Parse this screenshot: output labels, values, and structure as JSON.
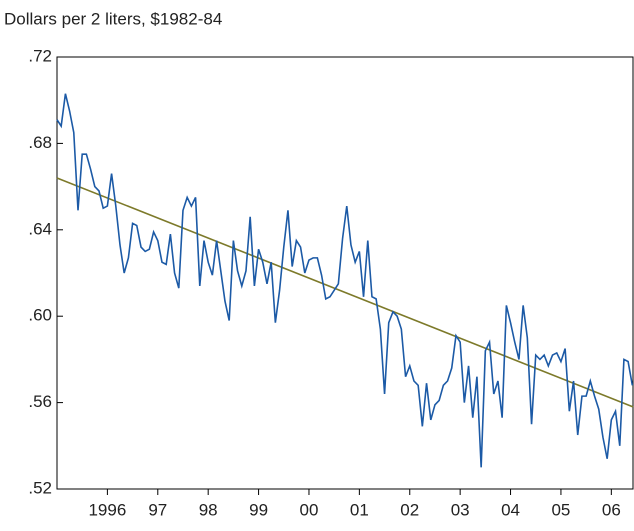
{
  "chart_data": {
    "type": "line",
    "title": "Dollars per 2 liters, $1982-84",
    "x": [
      1995.5,
      1995.583,
      1995.667,
      1995.75,
      1995.833,
      1995.917,
      1996,
      1996.083,
      1996.167,
      1996.25,
      1996.333,
      1996.417,
      1996.5,
      1996.583,
      1996.667,
      1996.75,
      1996.833,
      1996.917,
      1997,
      1997.083,
      1997.167,
      1997.25,
      1997.333,
      1997.417,
      1997.5,
      1997.583,
      1997.667,
      1997.75,
      1997.833,
      1997.917,
      1998,
      1998.083,
      1998.167,
      1998.25,
      1998.333,
      1998.417,
      1998.5,
      1998.583,
      1998.667,
      1998.75,
      1998.833,
      1998.917,
      1999,
      1999.083,
      1999.167,
      1999.25,
      1999.333,
      1999.417,
      1999.5,
      1999.583,
      1999.667,
      1999.75,
      1999.833,
      1999.917,
      2000,
      2000.083,
      2000.167,
      2000.25,
      2000.333,
      2000.417,
      2000.5,
      2000.583,
      2000.667,
      2000.75,
      2000.833,
      2000.917,
      2001,
      2001.083,
      2001.167,
      2001.25,
      2001.333,
      2001.417,
      2001.5,
      2001.583,
      2001.667,
      2001.75,
      2001.833,
      2001.917,
      2002,
      2002.083,
      2002.167,
      2002.25,
      2002.333,
      2002.417,
      2002.5,
      2002.583,
      2002.667,
      2002.75,
      2002.833,
      2002.917,
      2003,
      2003.083,
      2003.167,
      2003.25,
      2003.333,
      2003.417,
      2003.5,
      2003.583,
      2003.667,
      2003.75,
      2003.833,
      2003.917,
      2004,
      2004.083,
      2004.167,
      2004.25,
      2004.333,
      2004.417,
      2004.5,
      2004.583,
      2004.667,
      2004.75,
      2004.833,
      2004.917,
      2005,
      2005.083,
      2005.167,
      2005.25,
      2005.333,
      2005.417,
      2005.5,
      2005.583,
      2005.667,
      2005.75,
      2005.833,
      2005.917,
      2006,
      2006.083,
      2006.167,
      2006.25,
      2006.333,
      2006.417,
      2006.5,
      2006.583,
      2006.667,
      2006.75,
      2006.833,
      2006.917
    ],
    "values": [
      0.691,
      0.688,
      0.703,
      0.695,
      0.685,
      0.649,
      0.675,
      0.675,
      0.668,
      0.66,
      0.658,
      0.65,
      0.651,
      0.666,
      0.651,
      0.633,
      0.62,
      0.627,
      0.643,
      0.642,
      0.632,
      0.63,
      0.631,
      0.639,
      0.635,
      0.625,
      0.624,
      0.638,
      0.62,
      0.613,
      0.649,
      0.655,
      0.651,
      0.655,
      0.614,
      0.635,
      0.625,
      0.619,
      0.635,
      0.621,
      0.607,
      0.598,
      0.635,
      0.621,
      0.614,
      0.621,
      0.646,
      0.614,
      0.631,
      0.625,
      0.615,
      0.625,
      0.597,
      0.612,
      0.632,
      0.649,
      0.623,
      0.635,
      0.632,
      0.62,
      0.626,
      0.627,
      0.627,
      0.619,
      0.608,
      0.609,
      0.612,
      0.615,
      0.636,
      0.651,
      0.633,
      0.625,
      0.63,
      0.609,
      0.635,
      0.609,
      0.608,
      0.594,
      0.564,
      0.597,
      0.602,
      0.6,
      0.594,
      0.572,
      0.577,
      0.57,
      0.568,
      0.549,
      0.569,
      0.552,
      0.559,
      0.561,
      0.568,
      0.57,
      0.576,
      0.591,
      0.588,
      0.56,
      0.577,
      0.553,
      0.572,
      0.53,
      0.584,
      0.588,
      0.564,
      0.57,
      0.553,
      0.605,
      0.597,
      0.588,
      0.58,
      0.605,
      0.59,
      0.55,
      0.582,
      0.58,
      0.582,
      0.577,
      0.582,
      0.583,
      0.579,
      0.585,
      0.556,
      0.57,
      0.545,
      0.563,
      0.563,
      0.57,
      0.563,
      0.557,
      0.544,
      0.534,
      0.552,
      0.556,
      0.54,
      0.58,
      0.579,
      0.568
    ],
    "color": "#1c5aa6",
    "trend": {
      "x": [
        1995.5,
        2006.93
      ],
      "values": [
        0.664,
        0.558
      ],
      "color": "#7d7a2a"
    },
    "xlim": [
      1995.5,
      2006.93
    ],
    "xticks": [
      {
        "value": 1996.5,
        "label": "1996"
      },
      {
        "value": 1997.5,
        "label": "97"
      },
      {
        "value": 1998.5,
        "label": "98"
      },
      {
        "value": 1999.5,
        "label": "99"
      },
      {
        "value": 2000.5,
        "label": "00"
      },
      {
        "value": 2001.5,
        "label": "01"
      },
      {
        "value": 2002.5,
        "label": "02"
      },
      {
        "value": 2003.5,
        "label": "03"
      },
      {
        "value": 2004.5,
        "label": "04"
      },
      {
        "value": 2005.5,
        "label": "05"
      },
      {
        "value": 2006.5,
        "label": "06"
      }
    ],
    "ylim": [
      0.52,
      0.72
    ],
    "yticks": [
      {
        "value": 0.52,
        "label": ".52"
      },
      {
        "value": 0.56,
        "label": ".56"
      },
      {
        "value": 0.6,
        "label": ".60"
      },
      {
        "value": 0.64,
        "label": ".64"
      },
      {
        "value": 0.68,
        "label": ".68"
      },
      {
        "value": 0.72,
        "label": ".72"
      }
    ],
    "grid": false
  }
}
